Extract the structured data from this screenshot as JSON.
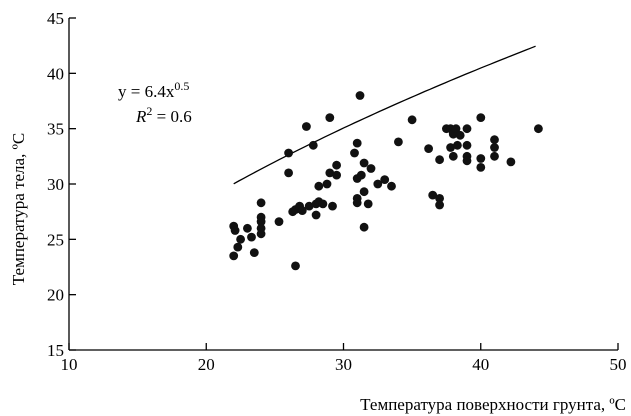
{
  "chart_data": {
    "type": "scatter",
    "title": "",
    "xlabel": "Температура поверхности грунта, ºC",
    "ylabel": "Температура тела, ºC",
    "xlim": [
      10,
      50
    ],
    "ylim": [
      15,
      45
    ],
    "xticks": [
      "10",
      "20",
      "30",
      "40",
      "50"
    ],
    "yticks": [
      "15",
      "20",
      "25",
      "30",
      "35",
      "40",
      "45"
    ],
    "grid": false,
    "legend": "none",
    "point_color": "#111111",
    "series": [
      {
        "x": [
          22.0,
          22.0,
          22.1,
          22.3,
          22.5,
          23.0,
          23.3,
          23.5,
          24.0,
          24.0,
          24.0,
          24.0,
          24.0,
          25.3,
          26.0,
          26.0,
          26.3,
          26.5,
          26.5,
          26.8,
          27.0,
          27.3,
          27.5,
          27.8,
          28.0,
          28.0,
          28.2,
          28.2,
          28.5,
          28.8,
          29.0,
          29.0,
          29.2,
          29.5,
          29.5,
          30.8,
          31.0,
          31.0,
          31.0,
          31.0,
          31.2,
          31.3,
          31.5,
          31.5,
          31.5,
          31.8,
          32.0,
          32.5,
          33.0,
          33.5,
          34.0,
          35.0,
          36.2,
          36.5,
          37.0,
          37.0,
          37.0,
          37.5,
          37.8,
          37.8,
          38.0,
          38.0,
          38.0,
          38.2,
          38.3,
          38.5,
          39.0,
          39.0,
          39.0,
          39.0,
          40.0,
          40.0,
          40.0,
          41.0,
          41.0,
          41.0,
          42.2,
          44.2
        ],
        "y": [
          23.5,
          26.2,
          25.8,
          24.3,
          25.0,
          26.0,
          25.2,
          23.8,
          28.3,
          27.0,
          26.6,
          26.0,
          25.5,
          26.6,
          32.8,
          31.0,
          27.5,
          27.7,
          22.6,
          28.0,
          27.6,
          35.2,
          28.0,
          33.5,
          28.2,
          27.2,
          29.8,
          28.4,
          28.2,
          30.0,
          36.0,
          31.0,
          28.0,
          30.8,
          31.7,
          32.8,
          33.7,
          30.5,
          28.7,
          28.3,
          38.0,
          30.8,
          31.9,
          29.3,
          26.1,
          28.2,
          31.4,
          30.0,
          30.4,
          29.8,
          33.8,
          35.8,
          33.2,
          29.0,
          28.7,
          28.1,
          32.2,
          35.0,
          35.0,
          33.3,
          34.6,
          34.5,
          32.5,
          35.0,
          33.5,
          34.4,
          35.0,
          33.5,
          32.5,
          32.1,
          36.0,
          32.3,
          31.5,
          34.0,
          33.3,
          32.5,
          32.0,
          35.0
        ]
      }
    ],
    "fit": {
      "equation_prefix": "y = 6.4x",
      "exponent": "0.5",
      "r2_symbol": "R",
      "r2_power": "2",
      "r2_value": " = 0.6",
      "a": 6.4,
      "b": 0.5,
      "x_range": [
        22,
        44
      ]
    }
  }
}
